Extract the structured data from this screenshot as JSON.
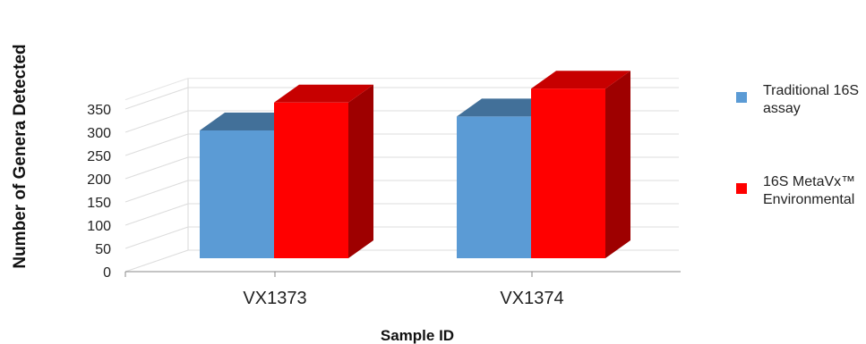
{
  "chart_data": {
    "type": "bar",
    "categories": [
      "VX1373",
      "VX1374"
    ],
    "series": [
      {
        "name": "Traditional 16S assay",
        "values": [
          275,
          305
        ],
        "color": "#5b9bd5"
      },
      {
        "name": "16S MetaVx™ Environmental",
        "values": [
          335,
          365
        ],
        "color": "#ff0000"
      }
    ],
    "xlabel": "Sample ID",
    "ylabel": "Number of Genera Detected",
    "yticks": [
      0,
      50,
      100,
      150,
      200,
      250,
      300,
      350
    ],
    "ylim": [
      0,
      350
    ],
    "grid": true,
    "legend": "right",
    "style": "3d"
  }
}
